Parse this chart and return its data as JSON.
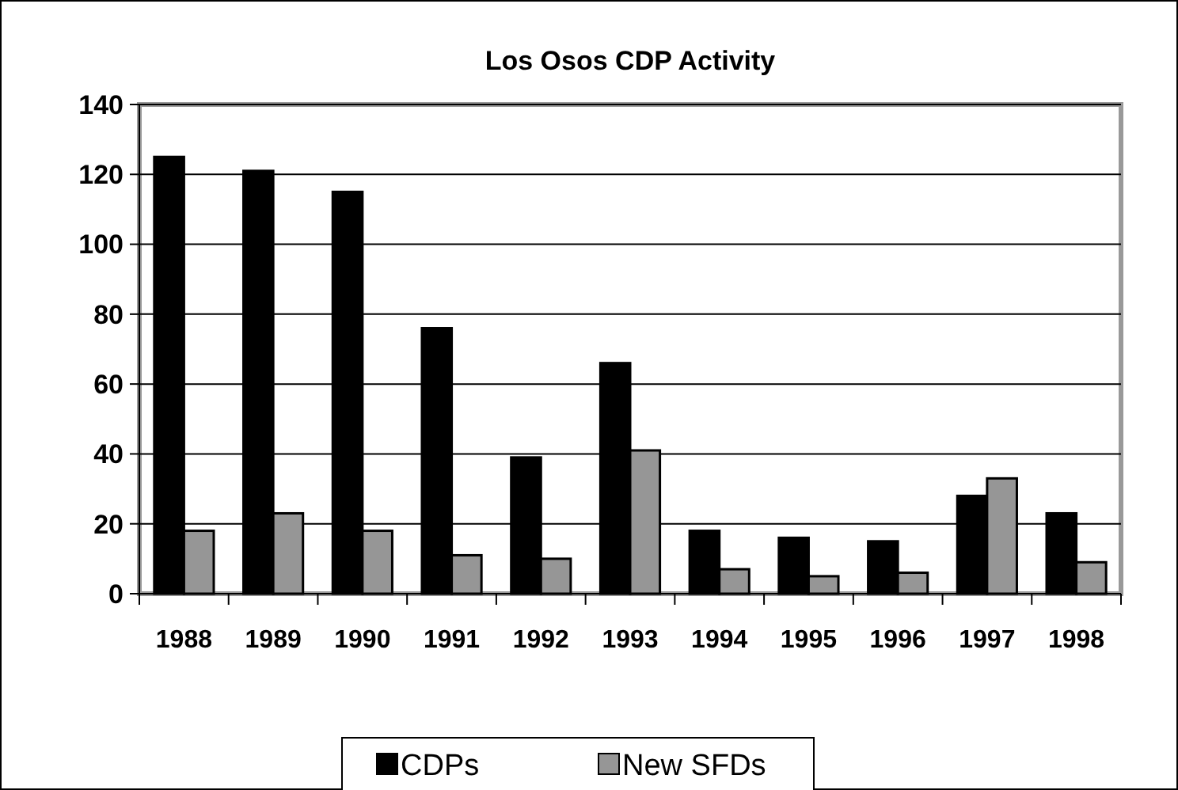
{
  "chart_data": {
    "type": "bar",
    "title": "Los Osos CDP Activity",
    "categories": [
      "1988",
      "1989",
      "1990",
      "1991",
      "1992",
      "1993",
      "1994",
      "1995",
      "1996",
      "1997",
      "1998"
    ],
    "series": [
      {
        "name": "CDPs",
        "color": "#000000",
        "values": [
          125,
          121,
          115,
          76,
          39,
          66,
          18,
          16,
          15,
          28,
          23
        ]
      },
      {
        "name": "New SFDs",
        "color": "#969696",
        "values": [
          18,
          23,
          18,
          11,
          10,
          41,
          7,
          5,
          6,
          33,
          9
        ]
      }
    ],
    "ylim": [
      0,
      140
    ],
    "yticks": [
      0,
      20,
      40,
      60,
      80,
      100,
      120,
      140
    ],
    "grid": "y",
    "legend": "bottom"
  }
}
